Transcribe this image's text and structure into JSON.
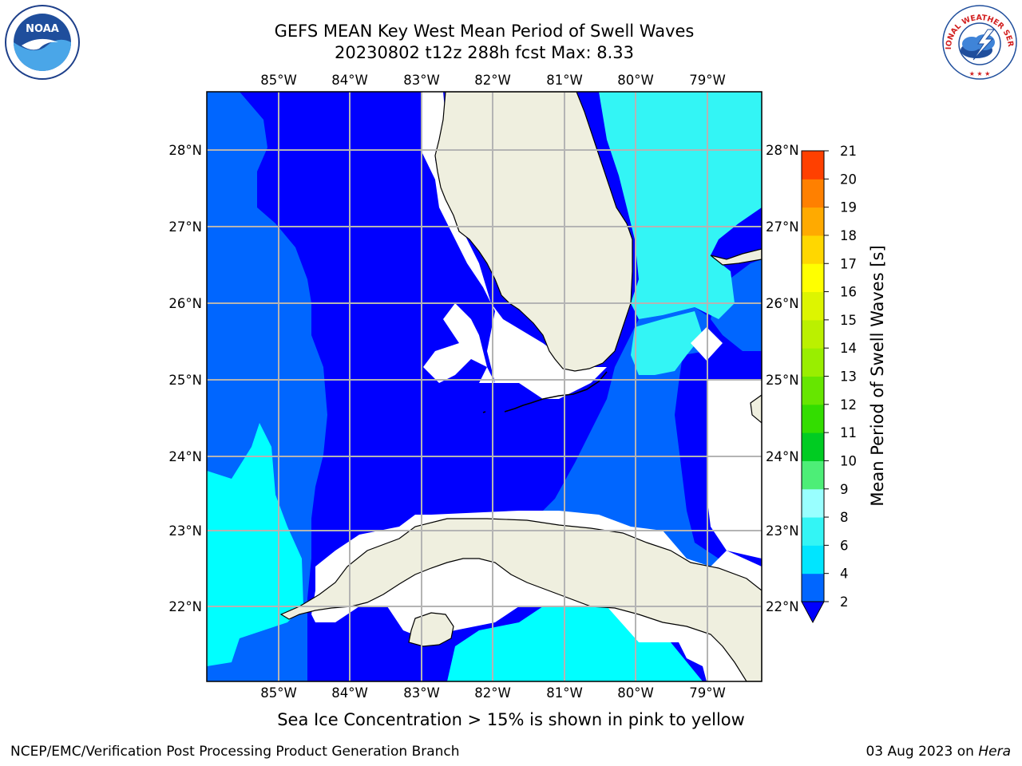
{
  "title": {
    "line1": "GEFS MEAN Key West Mean Period of Swell Waves",
    "line2": "20230802 t12z 288h fcst   Max: 8.33"
  },
  "logos": {
    "left": {
      "icon": "noaa-logo-icon",
      "text": "NOAA"
    },
    "right": {
      "icon": "national-weather-service-logo-icon",
      "text": "NATIONAL WEATHER SERVICE"
    }
  },
  "map": {
    "lon_labels": [
      "85°W",
      "84°W",
      "83°W",
      "82°W",
      "81°W",
      "80°W",
      "79°W"
    ],
    "lat_labels": [
      "28°N",
      "27°N",
      "26°N",
      "25°N",
      "24°N",
      "23°N",
      "22°N"
    ],
    "colors": {
      "land": "#efefdf",
      "nodata": "#ffffff",
      "grid": "#b4b4b4",
      "coast": "#000000"
    }
  },
  "colorbar": {
    "label": "Mean Period of Swell Waves [s]",
    "ticks": [
      "2",
      "4",
      "6",
      "8",
      "9",
      "10",
      "11",
      "12",
      "13",
      "14",
      "15",
      "16",
      "17",
      "18",
      "19",
      "20",
      "21"
    ],
    "colors": [
      "#0066ff",
      "#00e5ff",
      "#33f5f5",
      "#99ffff",
      "#4dee77",
      "#00cc22",
      "#33dd00",
      "#66e600",
      "#99ee00",
      "#bbf000",
      "#ddf500",
      "#ffff00",
      "#ffd700",
      "#ffaa00",
      "#ff8000",
      "#ff4000",
      "#ff0000"
    ],
    "under_color": "#0000ff"
  },
  "note": "Sea Ice Concentration > 15% is shown in pink to yellow",
  "footer": {
    "left": "NCEP/EMC/Verification Post Processing Product Generation Branch",
    "date": "03 Aug 2023 on ",
    "machine": "Hera"
  }
}
